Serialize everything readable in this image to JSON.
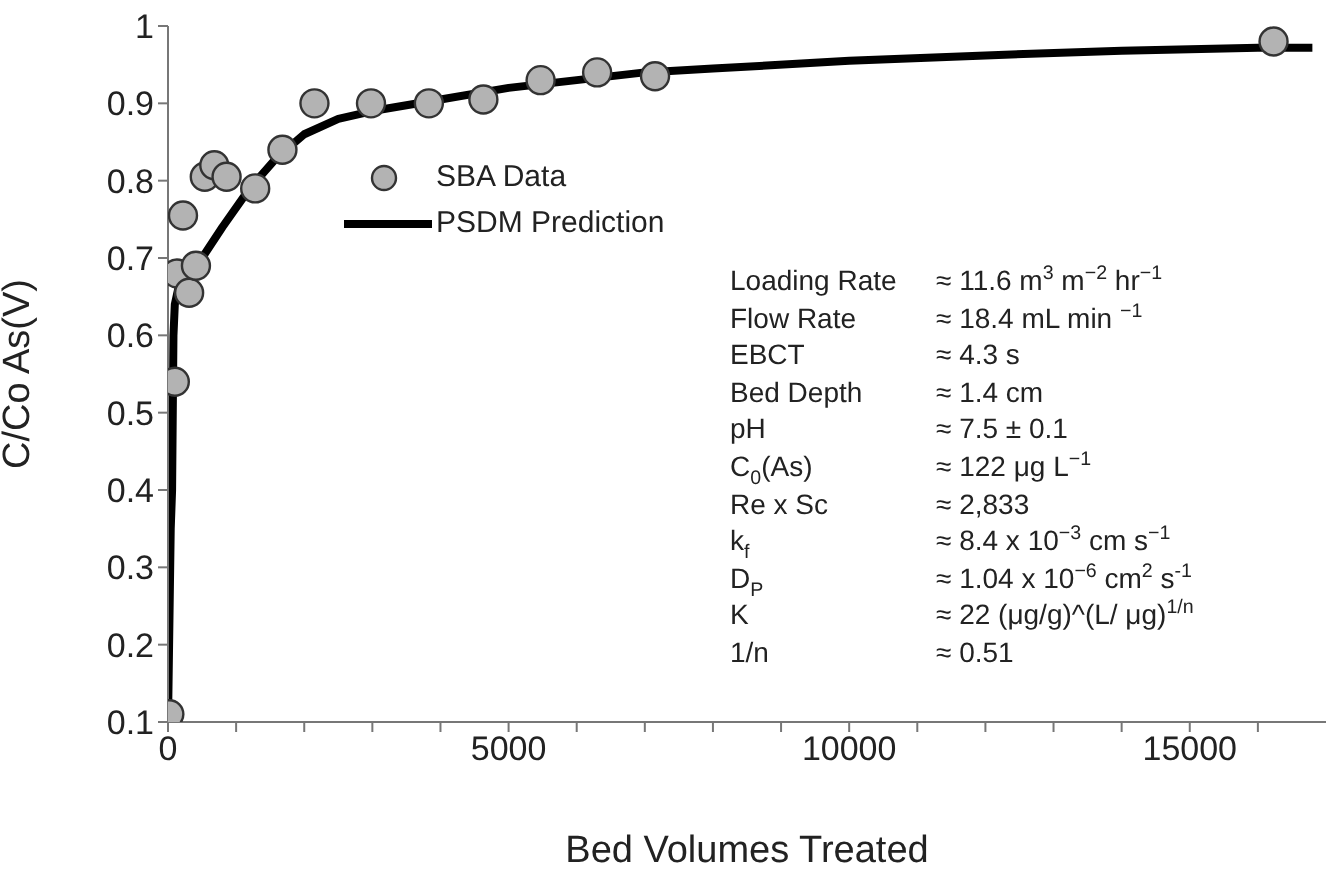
{
  "chart_data": {
    "type": "scatter",
    "xlabel": "Bed Volumes Treated",
    "ylabel": "C/Co As(V)",
    "xlim": [
      0,
      17000
    ],
    "ylim": [
      0.1,
      1
    ],
    "xticks": [
      0,
      {
        "value": 1000,
        "label": null
      },
      {
        "value": 2000,
        "label": null
      },
      {
        "value": 3000,
        "label": null
      },
      {
        "value": 4000,
        "label": null
      },
      5000,
      {
        "value": 6000,
        "label": null
      },
      {
        "value": 7000,
        "label": null
      },
      {
        "value": 8000,
        "label": null
      },
      {
        "value": 9000,
        "label": null
      },
      10000,
      {
        "value": 11000,
        "label": null
      },
      {
        "value": 12000,
        "label": null
      },
      {
        "value": 13000,
        "label": null
      },
      {
        "value": 14000,
        "label": null
      },
      15000,
      {
        "value": 16000,
        "label": null
      }
    ],
    "yticks": [
      0.1,
      0.2,
      0.3,
      0.4,
      0.5,
      0.6,
      0.7,
      0.8,
      0.9,
      1
    ],
    "grid": false,
    "legend": "top left",
    "series": [
      {
        "name": "SBA Data",
        "marker": "circle",
        "color": "#b3b3b3",
        "x": [
          20,
          100,
          130,
          220,
          310,
          410,
          540,
          680,
          860,
          1280,
          1680,
          2150,
          2980,
          3830,
          4630,
          5470,
          6300,
          7150,
          16230
        ],
        "values": [
          0.11,
          0.54,
          0.68,
          0.755,
          0.655,
          0.69,
          0.805,
          0.82,
          0.805,
          0.79,
          0.84,
          0.9,
          0.9,
          0.9,
          0.905,
          0.93,
          0.94,
          0.935,
          0.98
        ]
      },
      {
        "name": "PSDM Prediction",
        "type": "line",
        "marker": "none",
        "line_style": "solid",
        "color": "#000000",
        "x": [
          0,
          40,
          60,
          80,
          100,
          150,
          300,
          500,
          800,
          1200,
          1600,
          2000,
          2500,
          3000,
          4000,
          5000,
          6000,
          7000,
          8000,
          10000,
          12000,
          14000,
          16000,
          16800
        ],
        "values": [
          0.1,
          0.35,
          0.4,
          0.6,
          0.64,
          0.66,
          0.67,
          0.7,
          0.74,
          0.79,
          0.83,
          0.86,
          0.88,
          0.89,
          0.905,
          0.92,
          0.93,
          0.94,
          0.945,
          0.955,
          0.962,
          0.968,
          0.972,
          0.972
        ]
      }
    ],
    "annotations": [
      "Loading Rate",
      "≈ 11.6 m$^{3}$ m$^{−2}$ hr$^{−1}$",
      "Flow Rate",
      "≈ 18.4 mL min $^{−1}$",
      "EBCT",
      "≈ 4.3 s",
      "Bed Depth",
      "≈ 1.4 cm",
      "pH",
      "≈ 7.5 ± 0.1",
      "C$_{0}$(As)",
      "≈ 122 μg L$^{−1}$",
      "Re x Sc",
      "≈ 2,833",
      "k$_{f}$",
      "≈ 8.4 x 10$^{−3}$ cm s$^{−1}$",
      "D$_{P}$",
      "≈ 1.04 x 10$^{−6}$ cm$^{2}$ s$^{-1}$",
      "K",
      "≈ 22 (μg/g)^(L/ μg)$^{1/n}$",
      "1/n",
      "≈ 0.51"
    ]
  }
}
